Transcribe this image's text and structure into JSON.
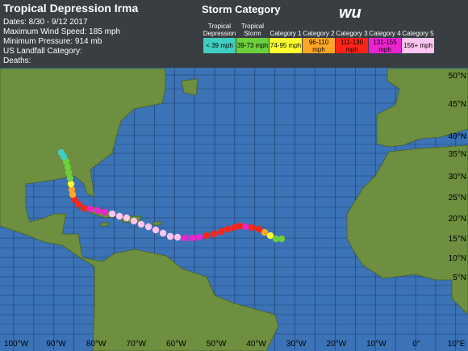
{
  "header": {
    "title": "Tropical Depression Irma",
    "details": [
      "Dates: 8/30 - 9/12 2017",
      "Maximum Wind Speed: 185 mph",
      "Minimum Pressure: 914 mb",
      "US Landfall Category:",
      "Deaths:"
    ]
  },
  "legend": {
    "title": "Storm Category",
    "logo": "wu",
    "categories": [
      {
        "name": "Tropical Depression",
        "range": "< 39 mph",
        "color": "#3fcfc0"
      },
      {
        "name": "Tropical Storm",
        "range": "39-73 mph",
        "color": "#6ccf3c"
      },
      {
        "name": "Category 1",
        "range": "74-95 mph",
        "color": "#ffff2e"
      },
      {
        "name": "Category 2",
        "range": "96-110 mph",
        "color": "#ffa624"
      },
      {
        "name": "Category 3",
        "range": "111-130 mph",
        "color": "#ff2418"
      },
      {
        "name": "Category 4",
        "range": "131-155 mph",
        "color": "#ee22d0"
      },
      {
        "name": "Category 5",
        "range": "156+ mph",
        "color": "#ffc4f0"
      }
    ]
  },
  "axes": {
    "longitude": [
      "100°W",
      "90°W",
      "80°W",
      "70°W",
      "60°W",
      "50°W",
      "40°W",
      "30°W",
      "20°W",
      "10°W",
      "0°",
      "10°E"
    ],
    "latitude": [
      "50°N",
      "45°N",
      "40°N",
      "35°N",
      "30°N",
      "25°N",
      "20°N",
      "15°N",
      "10°N",
      "5°N"
    ]
  }
}
